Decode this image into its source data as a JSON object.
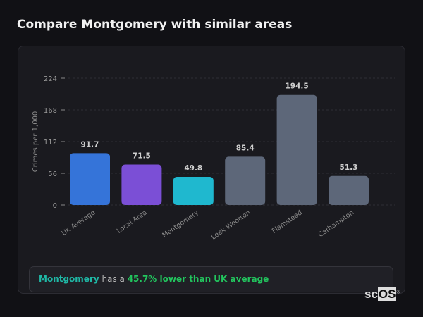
{
  "title": "Compare Montgomery with similar areas",
  "chart_data": {
    "type": "bar",
    "title": "",
    "xlabel": "",
    "ylabel": "Crimes per 1,000",
    "ylim": [
      0,
      224
    ],
    "yticks": [
      0,
      56,
      112,
      168,
      224
    ],
    "grid": true,
    "categories": [
      "UK Average",
      "Local Area",
      "Montgomery",
      "Leek Wootton",
      "Flamstead",
      "Carhampton"
    ],
    "values": [
      91.7,
      71.5,
      49.8,
      85.4,
      194.5,
      51.3
    ],
    "data_labels": [
      "91.7",
      "71.5",
      "49.8",
      "85.4",
      "194.5",
      "51.3"
    ],
    "colors": [
      "#3574d9",
      "#7b4fd6",
      "#1fb8cf",
      "#5d6779",
      "#5d6779",
      "#5d6779"
    ]
  },
  "summary": {
    "area": "Montgomery",
    "middle": " has a ",
    "comparison": "45.7% lower than UK average"
  },
  "logo": {
    "text_a": "sc",
    "text_b": "OS",
    "mark": "®"
  }
}
